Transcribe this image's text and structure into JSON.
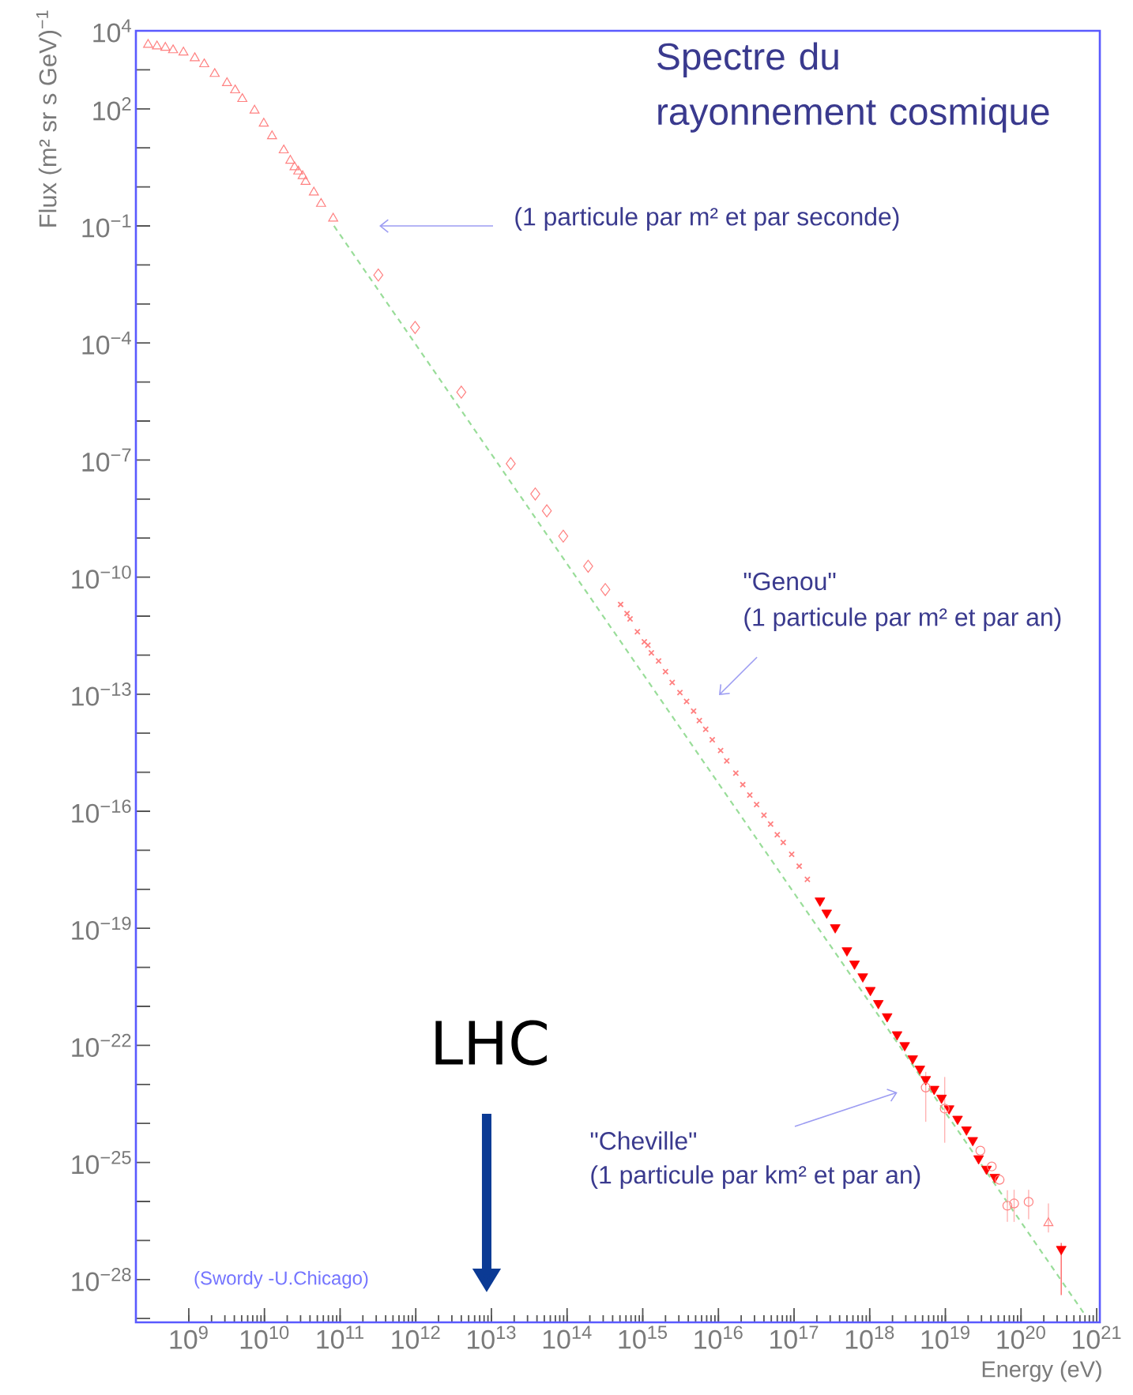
{
  "chart_data": {
    "type": "scatter",
    "title": "Spectre du rayonnement cosmique",
    "xlabel": "Energy (eV)",
    "ylabel": "Flux (m² sr s GeV)$^{−1}$",
    "log": "xy",
    "xlim": [
      200000000.0,
      1.1e+21
    ],
    "ylim": [
      8e-30,
      10000
    ],
    "xticks": [
      {
        "value": 1000000000.0,
        "label": "10$^{9}$"
      },
      {
        "value": 10000000000.0,
        "label": "10$^{10}$"
      },
      {
        "value": 100000000000.0,
        "label": "10$^{11}$"
      },
      {
        "value": 1000000000000.0,
        "label": "10$^{12}$"
      },
      {
        "value": 10000000000000.0,
        "label": "10$^{13}$"
      },
      {
        "value": 100000000000000.0,
        "label": "10$^{14}$"
      },
      {
        "value": 1000000000000000.0,
        "label": "10$^{15}$"
      },
      {
        "value": 1e+16,
        "label": "10$^{16}$"
      },
      {
        "value": 1e+17,
        "label": "10$^{17}$"
      },
      {
        "value": 1e+18,
        "label": "10$^{18}$"
      },
      {
        "value": 1e+19,
        "label": "10$^{19}$"
      },
      {
        "value": 1e+20,
        "label": "10$^{20}$"
      },
      {
        "value": 1e+21,
        "label": "10$^{21}$"
      }
    ],
    "yticks": [
      {
        "value": 1e-29,
        "label": null
      },
      {
        "value": 1e-28,
        "label": "10$^{−28}$"
      },
      {
        "value": 1e-27,
        "label": null
      },
      {
        "value": 1e-26,
        "label": null
      },
      {
        "value": 1e-25,
        "label": "10$^{−25}$"
      },
      {
        "value": 1e-24,
        "label": null
      },
      {
        "value": 1e-23,
        "label": null
      },
      {
        "value": 1e-22,
        "label": "10$^{−22}$"
      },
      {
        "value": 1e-21,
        "label": null
      },
      {
        "value": 1e-20,
        "label": null
      },
      {
        "value": 1e-19,
        "label": "10$^{−19}$"
      },
      {
        "value": 1e-18,
        "label": null
      },
      {
        "value": 1e-17,
        "label": null
      },
      {
        "value": 1e-16,
        "label": "10$^{−16}$"
      },
      {
        "value": 1e-15,
        "label": null
      },
      {
        "value": 1e-14,
        "label": null
      },
      {
        "value": 1e-13,
        "label": "10$^{−13}$"
      },
      {
        "value": 1e-12,
        "label": null
      },
      {
        "value": 1e-11,
        "label": null
      },
      {
        "value": 1e-10,
        "label": "10$^{−10}$"
      },
      {
        "value": 1e-09,
        "label": null
      },
      {
        "value": 1e-08,
        "label": null
      },
      {
        "value": 1e-07,
        "label": "10$^{−7}$"
      },
      {
        "value": 1e-06,
        "label": null
      },
      {
        "value": 1e-05,
        "label": null
      },
      {
        "value": 0.0001,
        "label": "10$^{−4}$"
      },
      {
        "value": 0.001,
        "label": null
      },
      {
        "value": 0.01,
        "label": null
      },
      {
        "value": 0.1,
        "label": "10$^{−1}$"
      },
      {
        "value": 1,
        "label": null
      },
      {
        "value": 10,
        "label": null
      },
      {
        "value": 100,
        "label": "10$^{2}$"
      },
      {
        "value": 1000,
        "label": null
      },
      {
        "value": 10000,
        "label": "10$^{4}$"
      }
    ],
    "series": [
      {
        "type": "line",
        "color": "#99dd99",
        "line_style": "dashed",
        "marker": "none",
        "x": [
          83000000000.0,
          7.2e+20
        ],
        "values": [
          0.1,
          1.15e-29
        ]
      },
      {
        "color": "#ff8080",
        "marker": "triangle",
        "x": [
          290000000.0,
          380000000.0,
          490000000.0,
          620000000.0,
          850000000.0,
          1200000000.0,
          1600000000.0,
          2200000000.0,
          3200000000.0,
          4100000000.0,
          5100000000.0,
          7400000000.0,
          9800000000.0,
          12600000000.0,
          18000000000.0,
          22000000000.0,
          25000000000.0,
          28000000000.0,
          32000000000.0,
          35000000000.0,
          45000000000.0,
          56000000000.0,
          81000000000.0,
          2.3e+20
        ],
        "values": [
          4400,
          4000,
          3700,
          3200,
          2800,
          2000,
          1400,
          790,
          460,
          300,
          180,
          91,
          42,
          20,
          8.7,
          4.7,
          3.2,
          2.5,
          1.9,
          1.35,
          0.72,
          0.37,
          0.155,
          2.8e-27
        ],
        "errors": [
          null,
          null,
          null,
          null,
          null,
          null,
          null,
          null,
          null,
          null,
          null,
          null,
          null,
          null,
          null,
          null,
          null,
          null,
          null,
          null,
          null,
          null,
          null,
          [
            1.6e-27,
            8.9e-27
          ]
        ]
      },
      {
        "color": "#ff8080",
        "marker": "diamond",
        "x": [
          320000000000.0,
          980000000000.0,
          4000000000000.0,
          18000000000000.0,
          38000000000000.0,
          54000000000000.0,
          89000000000000.0,
          190000000000000.0,
          320000000000000.0
        ],
        "values": [
          0.0055,
          0.00025,
          5.5e-06,
          8.1e-08,
          1.35e-08,
          5e-09,
          1.12e-09,
          1.9e-10,
          4.8e-11
        ]
      },
      {
        "color": "#ff8080",
        "marker": "cross",
        "x": [
          510000000000000.0,
          620000000000000.0,
          680000000000000.0,
          850000000000000.0,
          1050000000000000.0,
          1170000000000000.0,
          1300000000000000.0,
          1620000000000000.0,
          2000000000000000.0,
          2450000000000000.0,
          3100000000000000.0,
          3800000000000000.0,
          4700000000000000.0,
          5600000000000000.0,
          6800000000000000.0,
          8300000000000000.0,
          1.07e+16,
          1.29e+16,
          1.7e+16,
          2.1e+16,
          2.6e+16,
          3.2e+16,
          4e+16,
          4.9e+16,
          6e+16,
          7.2e+16,
          9.3e+16,
          1.17e+17,
          1.5e+17
        ],
        "values": [
          2e-11,
          1.17e-11,
          8.5e-12,
          4e-12,
          2.2e-12,
          1.8e-12,
          1.15e-12,
          7.1e-13,
          3.8e-13,
          2e-13,
          1.1e-13,
          6.5e-14,
          3.7e-14,
          2.1e-14,
          1.26e-14,
          6.8e-15,
          3.6e-15,
          1.95e-15,
          9.5e-16,
          4.8e-16,
          2.6e-16,
          1.48e-16,
          7.9e-17,
          4.7e-17,
          2.5e-17,
          1.58e-17,
          7.9e-18,
          3.9e-18,
          1.8e-18
        ]
      },
      {
        "color": "#ff0000",
        "marker": "triangle-down",
        "x": [
          2.2e+17,
          2.7e+17,
          3.5e+17,
          5e+17,
          6.3e+17,
          8.1e+17,
          1.02e+18,
          1.3e+18,
          1.7e+18,
          2.3e+18,
          2.9e+18,
          3.7e+18,
          4.6e+18,
          5.5e+18,
          7.1e+18,
          8.9e+18,
          1.12e+19,
          1.45e+19,
          1.9e+19,
          2.3e+19,
          2.75e+19,
          3.5e+19,
          4.5e+19,
          3.4e+20
        ],
        "values": [
          5.1e-19,
          2.5e-19,
          1.05e-19,
          2.7e-20,
          1.23e-20,
          5.8e-21,
          2.6e-21,
          1.2e-21,
          5.5e-22,
          1.9e-22,
          1e-22,
          4.6e-23,
          2.5e-23,
          1.35e-23,
          7.6e-24,
          4.5e-24,
          2.4e-24,
          1.3e-24,
          6.9e-25,
          3.7e-25,
          1.26e-25,
          6.8e-26,
          4.2e-26,
          6e-28
        ],
        "errors": [
          null,
          null,
          null,
          null,
          null,
          null,
          null,
          null,
          null,
          null,
          null,
          null,
          null,
          null,
          null,
          null,
          null,
          null,
          null,
          null,
          null,
          null,
          null,
          [
            4e-29,
            8.7e-28
          ]
        ]
      },
      {
        "color": "#ff8080",
        "marker": "circle",
        "x": [
          5.5e+18,
          9.8e+18,
          2.9e+19,
          4.1e+19,
          5.2e+19,
          6.6e+19,
          8.1e+19,
          1.26e+20
        ],
        "values": [
          8.3e-24,
          2.4e-24,
          2e-25,
          7.9e-26,
          3.6e-26,
          7.8e-27,
          8.9e-27,
          9.8e-27
        ],
        "errors": [
          [
            1.1e-24,
            2.1e-23
          ],
          [
            3.2e-25,
            1.55e-23
          ],
          null,
          null,
          null,
          [
            3e-27,
            1.95e-26
          ],
          [
            3e-27,
            2e-26
          ],
          [
            3.5e-27,
            2e-26
          ]
        ]
      }
    ],
    "annotations": [
      "(1 particule par m² et par seconde)",
      "\"Genou\"",
      "(1 particule par m² et par an)",
      "\"Cheville\"",
      "(1 particule par km² et par an)",
      "LHC",
      "(Swordy -U.Chicago)"
    ]
  }
}
